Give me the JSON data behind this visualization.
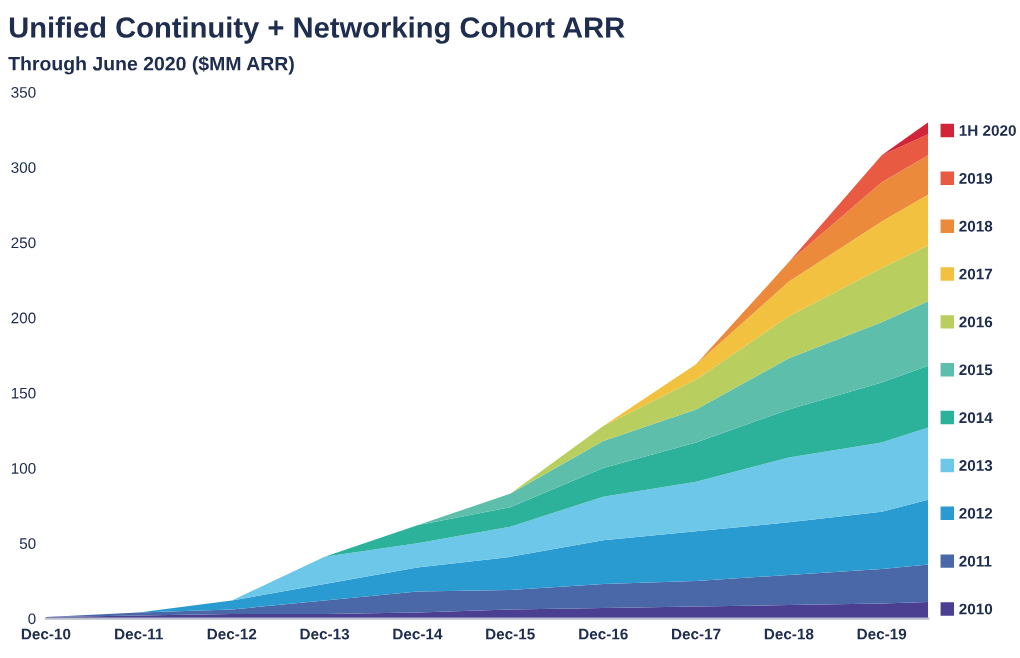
{
  "chart_data": {
    "type": "area",
    "stacked": true,
    "title": "Unified Continuity + Networking Cohort ARR",
    "subtitle": "Through June 2020 ($MM ARR)",
    "x": [
      "2010-12",
      "2011-12",
      "2012-12",
      "2013-12",
      "2014-12",
      "2015-12",
      "2016-12",
      "2017-12",
      "2018-12",
      "2019-12",
      "2020-06"
    ],
    "series": [
      {
        "name": "2010",
        "color": "#4b3f92",
        "values": [
          1,
          2,
          3,
          3,
          4,
          6,
          7,
          8,
          9,
          10,
          11
        ]
      },
      {
        "name": "2011",
        "color": "#4a67a8",
        "values": [
          0,
          2,
          3,
          9,
          14,
          13,
          16,
          17,
          20,
          23,
          25
        ]
      },
      {
        "name": "2012",
        "color": "#2a9bd0",
        "values": [
          0,
          0,
          6,
          11,
          16,
          22,
          29,
          33,
          35,
          38,
          43
        ]
      },
      {
        "name": "2013",
        "color": "#6dc7e8",
        "values": [
          0,
          0,
          0,
          18,
          16,
          20,
          29,
          33,
          43,
          46,
          48
        ]
      },
      {
        "name": "2014",
        "color": "#2cb29b",
        "values": [
          0,
          0,
          0,
          0,
          12,
          13,
          19,
          26,
          32,
          40,
          41
        ]
      },
      {
        "name": "2015",
        "color": "#5dbeac",
        "values": [
          0,
          0,
          0,
          0,
          0,
          9,
          18,
          22,
          34,
          40,
          43
        ]
      },
      {
        "name": "2016",
        "color": "#b8cf60",
        "values": [
          0,
          0,
          0,
          0,
          0,
          0,
          10,
          20,
          28,
          36,
          37
        ]
      },
      {
        "name": "2017",
        "color": "#f1c13f",
        "values": [
          0,
          0,
          0,
          0,
          0,
          0,
          0,
          10,
          23,
          31,
          34
        ]
      },
      {
        "name": "2018",
        "color": "#ea8a3a",
        "values": [
          0,
          0,
          0,
          0,
          0,
          0,
          0,
          0,
          13,
          26,
          26
        ]
      },
      {
        "name": "2019",
        "color": "#e85a42",
        "values": [
          0,
          0,
          0,
          0,
          0,
          0,
          0,
          0,
          0,
          18,
          14
        ]
      },
      {
        "name": "1H 2020",
        "color": "#d1263a",
        "values": [
          0,
          0,
          0,
          0,
          0,
          0,
          0,
          0,
          0,
          0,
          8
        ]
      }
    ],
    "xlim": [
      "2010-12",
      "2020-06"
    ],
    "xticks": [
      {
        "value": "2010-12",
        "label": "Dec-10"
      },
      {
        "value": "2011-12",
        "label": "Dec-11"
      },
      {
        "value": "2012-12",
        "label": "Dec-12"
      },
      {
        "value": "2013-12",
        "label": "Dec-13"
      },
      {
        "value": "2014-12",
        "label": "Dec-14"
      },
      {
        "value": "2015-12",
        "label": "Dec-15"
      },
      {
        "value": "2016-12",
        "label": "Dec-16"
      },
      {
        "value": "2017-12",
        "label": "Dec-17"
      },
      {
        "value": "2018-12",
        "label": "Dec-18"
      },
      {
        "value": "2019-12",
        "label": "Dec-19"
      }
    ],
    "ylim": [
      0,
      350
    ],
    "yticks": [
      0,
      50,
      100,
      150,
      200,
      250,
      300,
      350
    ],
    "grid": false,
    "legend": "right"
  }
}
